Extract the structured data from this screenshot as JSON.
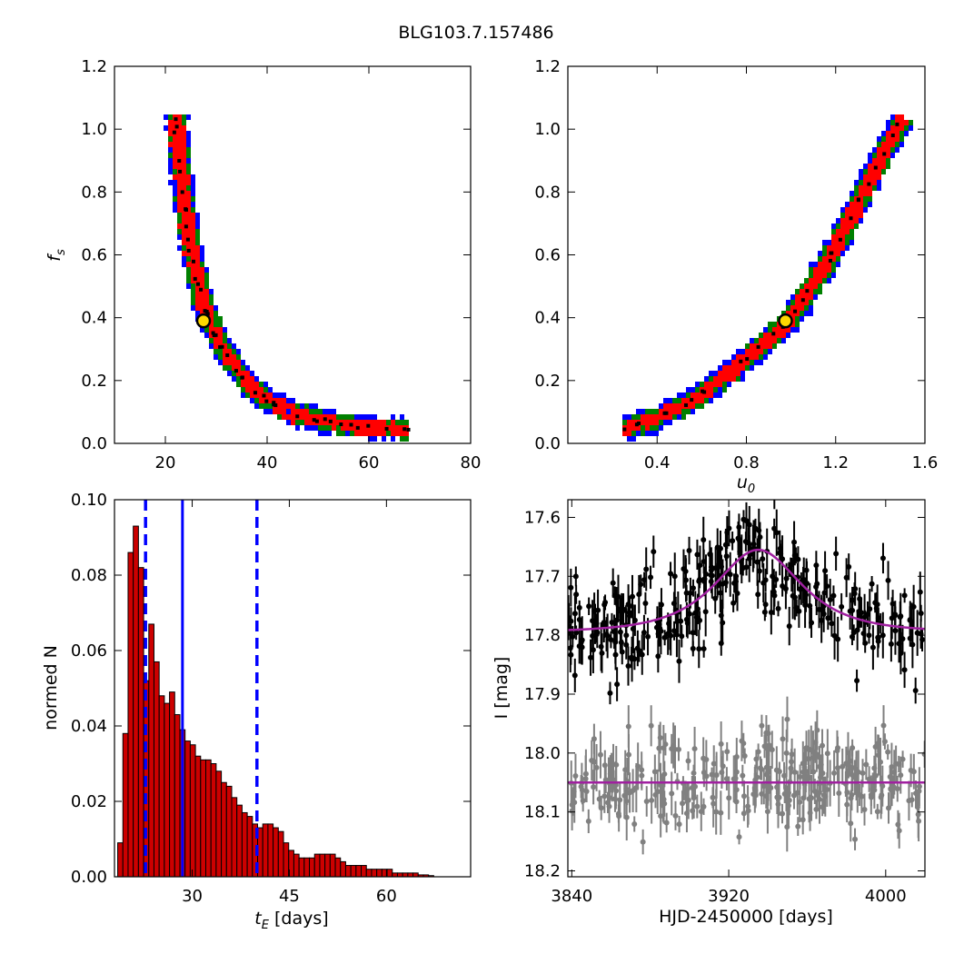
{
  "figure_title": "BLG103.7.157486",
  "colors": {
    "sigma1": "#ff0000",
    "sigma2": "#008000",
    "sigma3": "#0000ff",
    "samples": "#000000",
    "best_fit_marker_fill": "#ffd700",
    "histogram_bar": "#cc0000",
    "median_line": "#0000ff",
    "model_curve": "#a020a0",
    "data_points": "#000000",
    "residual_points": "#808080"
  },
  "chart_data": [
    {
      "panel": "tE-fs",
      "type": "heatmap",
      "xlabel": "",
      "ylabel": "f_s",
      "xlim": [
        10,
        80
      ],
      "ylim": [
        0,
        1.2
      ],
      "xticks": [
        "20",
        "40",
        "60",
        "80"
      ],
      "yticks": [
        "0.0",
        "0.2",
        "0.4",
        "0.6",
        "0.8",
        "1.0",
        "1.2"
      ],
      "best_fit": {
        "x": 27.5,
        "y": 0.39
      },
      "band_centerline": [
        [
          21.5,
          1.05
        ],
        [
          22,
          0.95
        ],
        [
          23,
          0.8
        ],
        [
          24,
          0.68
        ],
        [
          25,
          0.58
        ],
        [
          26.5,
          0.48
        ],
        [
          28,
          0.4
        ],
        [
          30,
          0.33
        ],
        [
          33,
          0.25
        ],
        [
          36,
          0.19
        ],
        [
          40,
          0.14
        ],
        [
          45,
          0.1
        ],
        [
          50,
          0.08
        ],
        [
          55,
          0.065
        ],
        [
          60,
          0.055
        ],
        [
          68,
          0.05
        ]
      ],
      "contour_levels": [
        "1-sigma",
        "2-sigma",
        "3-sigma"
      ]
    },
    {
      "panel": "u0-fs",
      "type": "heatmap",
      "xlabel": "u_0",
      "ylabel": "",
      "xlim": [
        0.0,
        1.6
      ],
      "ylim": [
        0,
        1.2
      ],
      "xticks": [
        "0.4",
        "0.8",
        "1.2",
        "1.6"
      ],
      "yticks": [
        "0.0",
        "0.2",
        "0.4",
        "0.6",
        "0.8",
        "1.0",
        "1.2"
      ],
      "best_fit": {
        "x": 0.975,
        "y": 0.39
      },
      "band_centerline": [
        [
          0.25,
          0.05
        ],
        [
          0.4,
          0.09
        ],
        [
          0.55,
          0.14
        ],
        [
          0.7,
          0.22
        ],
        [
          0.85,
          0.31
        ],
        [
          0.975,
          0.39
        ],
        [
          1.1,
          0.52
        ],
        [
          1.2,
          0.64
        ],
        [
          1.3,
          0.78
        ],
        [
          1.4,
          0.92
        ],
        [
          1.5,
          1.05
        ]
      ],
      "contour_levels": [
        "1-sigma",
        "2-sigma",
        "3-sigma"
      ]
    },
    {
      "panel": "tE-histogram",
      "type": "bar",
      "xlabel": "t_E [days]",
      "ylabel": "normed N",
      "xlim": [
        18,
        73
      ],
      "ylim": [
        0,
        0.1
      ],
      "xticks": [
        "30",
        "45",
        "60"
      ],
      "yticks": [
        "0.00",
        "0.02",
        "0.04",
        "0.06",
        "0.08",
        "0.10"
      ],
      "bin_start": 18.5,
      "bin_width": 0.8,
      "values": [
        0.009,
        0.038,
        0.086,
        0.093,
        0.082,
        0.052,
        0.067,
        0.057,
        0.048,
        0.046,
        0.049,
        0.043,
        0.039,
        0.036,
        0.035,
        0.032,
        0.031,
        0.031,
        0.03,
        0.028,
        0.025,
        0.024,
        0.021,
        0.019,
        0.017,
        0.016,
        0.014,
        0.013,
        0.014,
        0.014,
        0.013,
        0.012,
        0.009,
        0.007,
        0.006,
        0.005,
        0.005,
        0.005,
        0.006,
        0.006,
        0.006,
        0.006,
        0.005,
        0.004,
        0.003,
        0.003,
        0.003,
        0.003,
        0.002,
        0.002,
        0.002,
        0.002,
        0.002,
        0.001,
        0.001,
        0.001,
        0.001,
        0.001,
        0.0005,
        0.0005,
        0.0003
      ],
      "median_line": 28.5,
      "dashed_lines": [
        22.8,
        40.0
      ]
    },
    {
      "panel": "light-curve",
      "type": "scatter",
      "xlabel": "HJD-2450000 [days]",
      "ylabel": "I [mag]",
      "xlim": [
        3838,
        4020
      ],
      "ylim": [
        18.21,
        17.57
      ],
      "y_inverted": true,
      "xticks": [
        "3840",
        "3920",
        "4000"
      ],
      "yticks": [
        "17.6",
        "17.7",
        "17.8",
        "17.9",
        "18.0",
        "18.1",
        "18.2"
      ],
      "model": {
        "baseline": 17.795,
        "peak_time": 3935,
        "peak_mag": 17.655,
        "tE": 28.5,
        "u0": 0.975
      },
      "residual_offset": 18.05,
      "series": [
        {
          "name": "",
          "role": "data",
          "mean": 17.795,
          "scatter": 0.045,
          "n": 320
        },
        {
          "name": "",
          "role": "residuals",
          "mean": 18.05,
          "scatter": 0.04,
          "n": 320
        }
      ]
    }
  ]
}
